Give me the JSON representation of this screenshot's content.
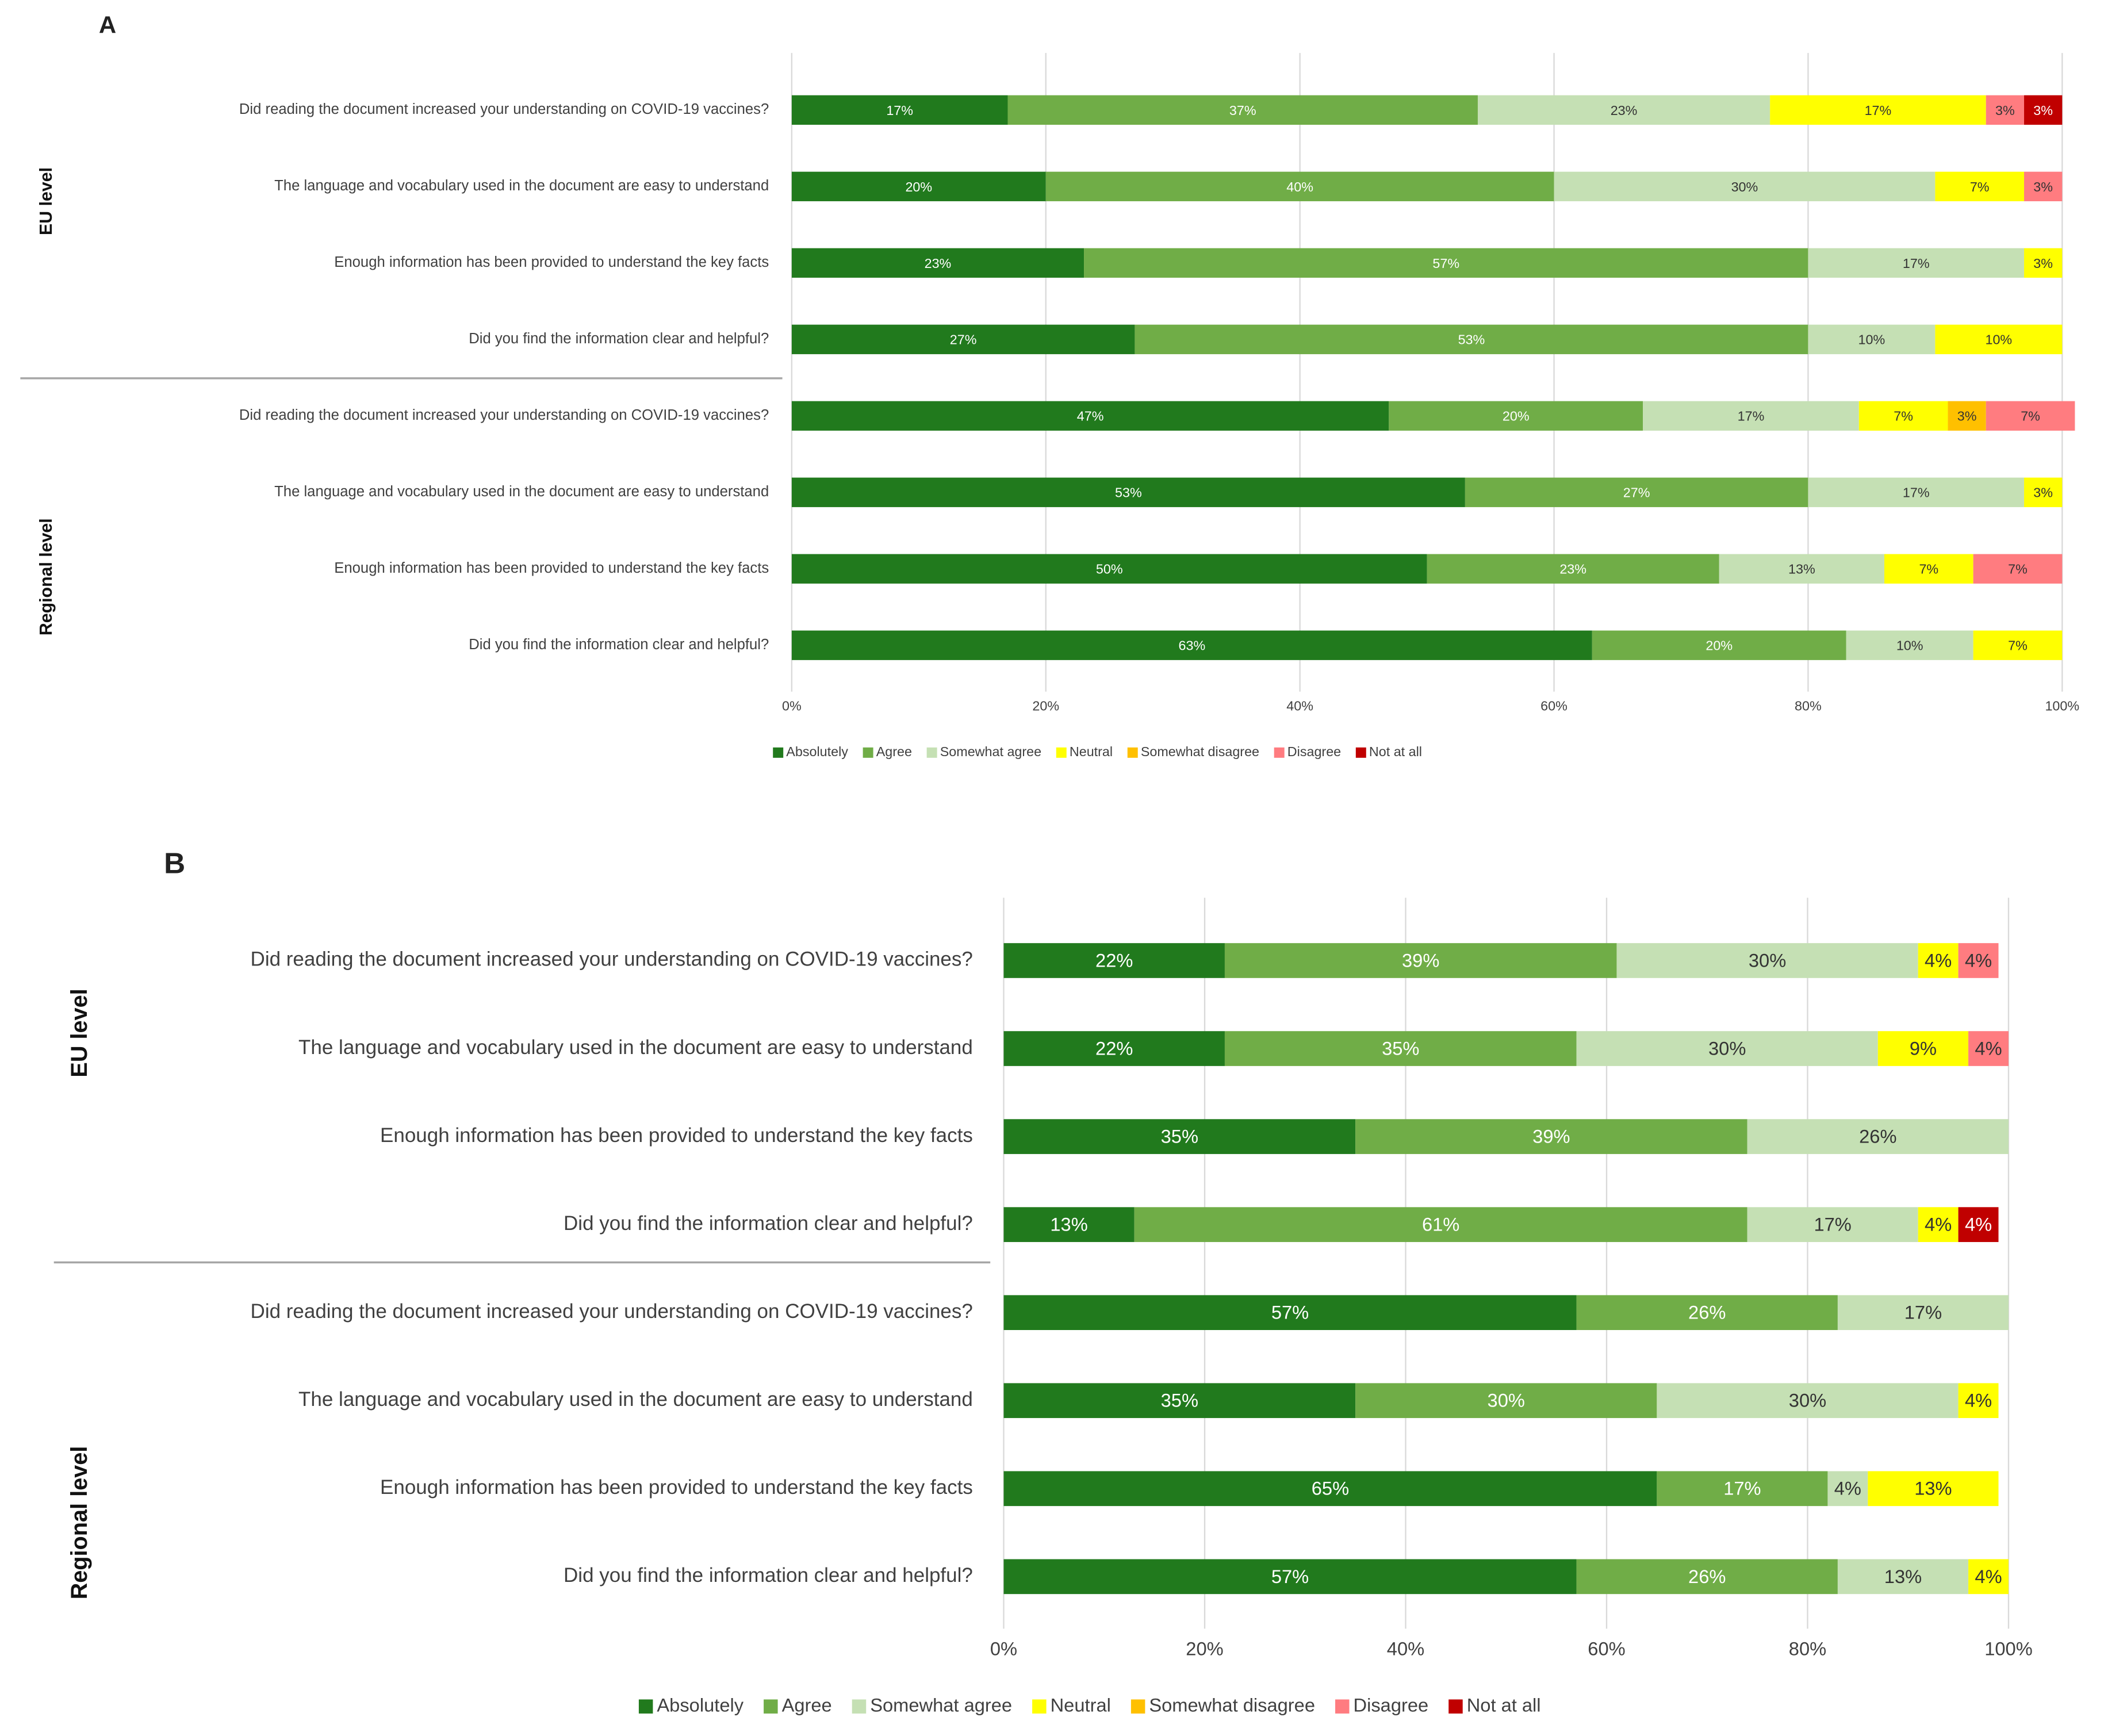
{
  "chart_data": [
    {
      "type": "stacked-barh",
      "title": "A",
      "categories": [
        "Did reading the document increased your understanding on COVID-19 vaccines?",
        "The language and vocabulary used in the document are easy to understand",
        "Enough information has been provided to understand the key facts",
        "Did you find the information clear and helpful?",
        "Did reading the document increased your understanding on COVID-19 vaccines?",
        "The language and vocabulary used in the document are easy to understand",
        "Enough information has been provided to understand the key facts",
        "Did you find the information clear and helpful?"
      ],
      "group_labels": [
        "EU level",
        "Regional level"
      ],
      "series": [
        {
          "name": "Absolutely",
          "color": "#217a1d",
          "values": [
            17,
            20,
            23,
            27,
            47,
            53,
            50,
            63
          ],
          "value_labels": [
            "17%",
            "20%",
            "23%",
            "27%",
            "47%",
            "53%",
            "50%",
            "63%"
          ]
        },
        {
          "name": "Agree",
          "color": "#70ad47",
          "values": [
            37,
            40,
            57,
            53,
            20,
            27,
            23,
            20
          ],
          "value_labels": [
            "37%",
            "40%",
            "57%",
            "53%",
            "20%",
            "27%",
            "23%",
            "20%"
          ]
        },
        {
          "name": "Somewhat agree",
          "color": "#c5e0b4",
          "values": [
            23,
            30,
            17,
            10,
            17,
            17,
            13,
            10
          ],
          "value_labels": [
            "23%",
            "30%",
            "17%",
            "10%",
            "17%",
            "17%",
            "13%",
            "10%"
          ]
        },
        {
          "name": "Neutral",
          "color": "#ffff00",
          "values": [
            17,
            7,
            3,
            10,
            7,
            3,
            7,
            7
          ],
          "value_labels": [
            "17%",
            "7%",
            "3%",
            "10%",
            "7%",
            "3%",
            "7%",
            "7%"
          ]
        },
        {
          "name": "Somewhat disagree",
          "color": "#ffc000",
          "values": [
            null,
            null,
            null,
            null,
            3,
            null,
            null,
            null
          ],
          "value_labels": [
            null,
            null,
            null,
            null,
            "3%",
            null,
            null,
            null
          ]
        },
        {
          "name": "Disagree",
          "color": "#ff7c80",
          "values": [
            3,
            3,
            null,
            null,
            7,
            null,
            7,
            null
          ],
          "value_labels": [
            "3%",
            "3%",
            null,
            null,
            "7%",
            null,
            "7%",
            null
          ]
        },
        {
          "name": "Not at all",
          "color": "#c00000",
          "values": [
            3,
            null,
            null,
            null,
            null,
            null,
            null,
            null
          ],
          "value_labels": [
            "3%",
            null,
            null,
            null,
            null,
            null,
            null,
            null
          ]
        }
      ],
      "xlim": [
        0,
        100
      ],
      "xticks": [
        {
          "value": 0,
          "label": "0%"
        },
        {
          "value": 20,
          "label": "20%"
        },
        {
          "value": 40,
          "label": "40%"
        },
        {
          "value": 60,
          "label": "60%"
        },
        {
          "value": 80,
          "label": "80%"
        },
        {
          "value": 100,
          "label": "100%"
        }
      ],
      "grid": true,
      "legend": "bottom"
    },
    {
      "type": "stacked-barh",
      "title": "B",
      "categories": [
        "Did reading the document increased your understanding on COVID-19 vaccines?",
        "The language and vocabulary used in the document are easy to understand",
        "Enough information has been provided to understand the key facts",
        "Did you find the information clear and helpful?",
        "Did reading the document increased your understanding on COVID-19 vaccines?",
        "The language and vocabulary used in the document are easy to understand",
        "Enough information has been provided to understand the key facts",
        "Did you find the information clear and helpful?"
      ],
      "group_labels": [
        "EU level",
        "Regional level"
      ],
      "series": [
        {
          "name": "Absolutely",
          "color": "#217a1d",
          "values": [
            22,
            22,
            35,
            13,
            57,
            35,
            65,
            57
          ],
          "value_labels": [
            "22%",
            "22%",
            "35%",
            "13%",
            "57%",
            "35%",
            "65%",
            "57%"
          ]
        },
        {
          "name": "Agree",
          "color": "#70ad47",
          "values": [
            39,
            35,
            39,
            61,
            26,
            30,
            17,
            26
          ],
          "value_labels": [
            "39%",
            "35%",
            "39%",
            "61%",
            "26%",
            "30%",
            "17%",
            "26%"
          ]
        },
        {
          "name": "Somewhat agree",
          "color": "#c5e0b4",
          "values": [
            30,
            30,
            26,
            17,
            17,
            30,
            4,
            13
          ],
          "value_labels": [
            "30%",
            "30%",
            "26%",
            "17%",
            "17%",
            "30%",
            "4%",
            "13%"
          ]
        },
        {
          "name": "Neutral",
          "color": "#ffff00",
          "values": [
            4,
            9,
            null,
            4,
            null,
            4,
            13,
            4
          ],
          "value_labels": [
            "4%",
            "9%",
            null,
            "4%",
            null,
            "4%",
            "13%",
            "4%"
          ]
        },
        {
          "name": "Somewhat disagree",
          "color": "#ffc000",
          "values": [
            null,
            null,
            null,
            null,
            null,
            null,
            null,
            null
          ],
          "value_labels": [
            null,
            null,
            null,
            null,
            null,
            null,
            null,
            null
          ]
        },
        {
          "name": "Disagree",
          "color": "#ff7c80",
          "values": [
            4,
            4,
            null,
            null,
            null,
            null,
            null,
            null
          ],
          "value_labels": [
            "4%",
            "4%",
            null,
            null,
            null,
            null,
            null,
            null
          ]
        },
        {
          "name": "Not at all",
          "color": "#c00000",
          "values": [
            null,
            null,
            null,
            4,
            null,
            null,
            null,
            null
          ],
          "value_labels": [
            null,
            null,
            null,
            "4%",
            null,
            null,
            null,
            null
          ]
        }
      ],
      "xlim": [
        0,
        100
      ],
      "xticks": [
        {
          "value": 0,
          "label": "0%"
        },
        {
          "value": 20,
          "label": "20%"
        },
        {
          "value": 40,
          "label": "40%"
        },
        {
          "value": 60,
          "label": "60%"
        },
        {
          "value": 80,
          "label": "80%"
        },
        {
          "value": 100,
          "label": "100%"
        }
      ],
      "grid": true,
      "legend": "bottom"
    }
  ]
}
